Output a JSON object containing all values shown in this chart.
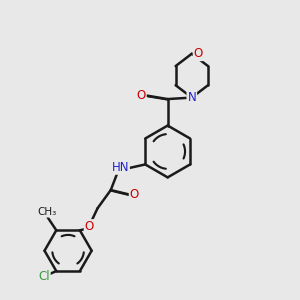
{
  "bg_color": "#e8e8e8",
  "bond_color": "#1a1a1a",
  "bond_width": 1.8,
  "dbo": 0.018,
  "atom_colors": {
    "O": "#cc0000",
    "N": "#2222cc",
    "Cl": "#3a9a3a",
    "C": "#1a1a1a",
    "H": "#666666"
  },
  "font_size": 8.5,
  "fig_size": [
    3.0,
    3.0
  ],
  "dpi": 100
}
